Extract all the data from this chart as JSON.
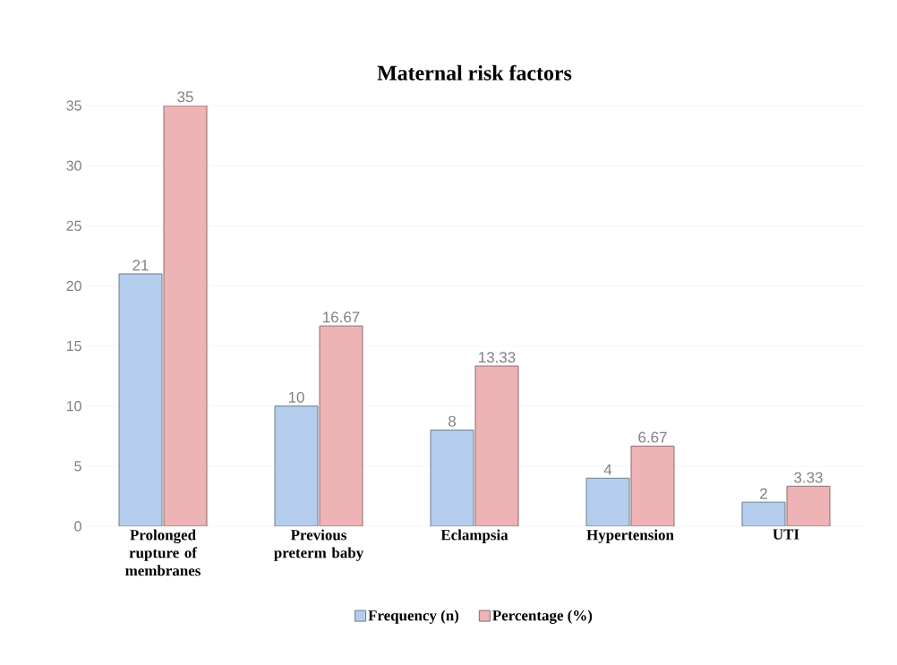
{
  "chart_data": {
    "type": "bar",
    "title": "Maternal risk factors",
    "categories": [
      "Prolonged rupture of membranes",
      "Previous preterm baby",
      "Eclampsia",
      "Hypertension",
      "UTI"
    ],
    "series": [
      {
        "name": "Frequency (n)",
        "color": "#b5cded",
        "values": [
          21,
          10,
          8,
          4,
          2
        ]
      },
      {
        "name": "Percentage (%)",
        "color": "#eeb3b5",
        "values": [
          35,
          16.67,
          13.33,
          6.67,
          3.33
        ]
      }
    ],
    "ylim": [
      0,
      35
    ],
    "yticks": [
      0,
      5,
      10,
      15,
      20,
      25,
      30,
      35
    ],
    "grid": "y",
    "legend": "bottom",
    "data_labels": true
  }
}
